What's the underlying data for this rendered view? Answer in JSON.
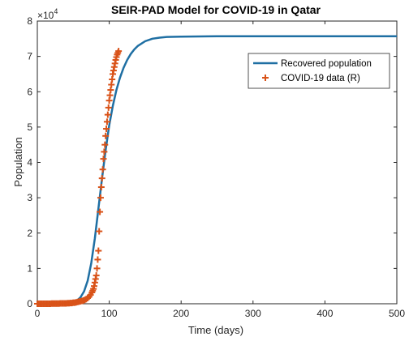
{
  "chart_data": {
    "type": "line",
    "title": "SEIR-PAD Model for COVID-19 in Qatar",
    "xlabel": "Time (days)",
    "ylabel": "Population",
    "y_exponent_label": "×10",
    "y_exponent_power": "4",
    "xlim": [
      0,
      500
    ],
    "ylim": [
      0,
      80000
    ],
    "grid": false,
    "legend_position": "top-right",
    "x_ticks": [
      0,
      100,
      200,
      300,
      400,
      500
    ],
    "x_tick_labels": [
      "0",
      "100",
      "200",
      "300",
      "400",
      "500"
    ],
    "y_ticks": [
      0,
      10000,
      20000,
      30000,
      40000,
      50000,
      60000,
      70000,
      80000
    ],
    "y_tick_labels": [
      "0",
      "1",
      "2",
      "3",
      "4",
      "5",
      "6",
      "7",
      "8"
    ],
    "series": [
      {
        "name": "Recovered population",
        "kind": "line",
        "color": "#1f6fa3",
        "x": [
          0,
          20,
          40,
          50,
          55,
          60,
          65,
          70,
          75,
          80,
          85,
          90,
          95,
          100,
          105,
          110,
          115,
          120,
          125,
          130,
          135,
          140,
          150,
          160,
          170,
          180,
          200,
          250,
          300,
          350,
          400,
          450,
          500
        ],
        "y": [
          0,
          0,
          100,
          400,
          900,
          1800,
          3500,
          6500,
          11500,
          18500,
          27000,
          35500,
          43500,
          50500,
          56000,
          60500,
          64000,
          66800,
          69000,
          70700,
          72000,
          73000,
          74300,
          75000,
          75300,
          75500,
          75600,
          75700,
          75700,
          75700,
          75700,
          75700,
          75700
        ]
      },
      {
        "name": "COVID-19 data (R)",
        "kind": "scatter",
        "color": "#d95319",
        "marker": "plus",
        "x": [
          0,
          2,
          4,
          6,
          8,
          10,
          12,
          14,
          16,
          18,
          20,
          22,
          24,
          26,
          28,
          30,
          32,
          34,
          36,
          38,
          40,
          42,
          44,
          46,
          48,
          50,
          52,
          54,
          56,
          58,
          60,
          62,
          64,
          66,
          68,
          70,
          72,
          74,
          76,
          77,
          78,
          79,
          80,
          81,
          82,
          83,
          84,
          85,
          86,
          87,
          88,
          89,
          90,
          91,
          92,
          93,
          94,
          95,
          96,
          97,
          98,
          99,
          100,
          101,
          102,
          103,
          104,
          105,
          106,
          107,
          108,
          109,
          110,
          111,
          112,
          113
        ],
        "y": [
          0,
          0,
          0,
          0,
          0,
          0,
          0,
          0,
          0,
          0,
          50,
          50,
          50,
          50,
          50,
          50,
          100,
          100,
          100,
          100,
          100,
          150,
          150,
          200,
          200,
          300,
          300,
          400,
          500,
          600,
          700,
          800,
          900,
          1100,
          1300,
          1600,
          2000,
          2500,
          3200,
          3700,
          4200,
          5000,
          6000,
          7000,
          8000,
          10000,
          12500,
          15000,
          20500,
          26000,
          30000,
          33000,
          35500,
          38000,
          41000,
          43000,
          45000,
          47500,
          49500,
          51500,
          53500,
          55500,
          57500,
          59000,
          60500,
          62000,
          63500,
          65000,
          66000,
          67000,
          68000,
          69000,
          69800,
          70500,
          71000,
          71500
        ]
      }
    ]
  }
}
